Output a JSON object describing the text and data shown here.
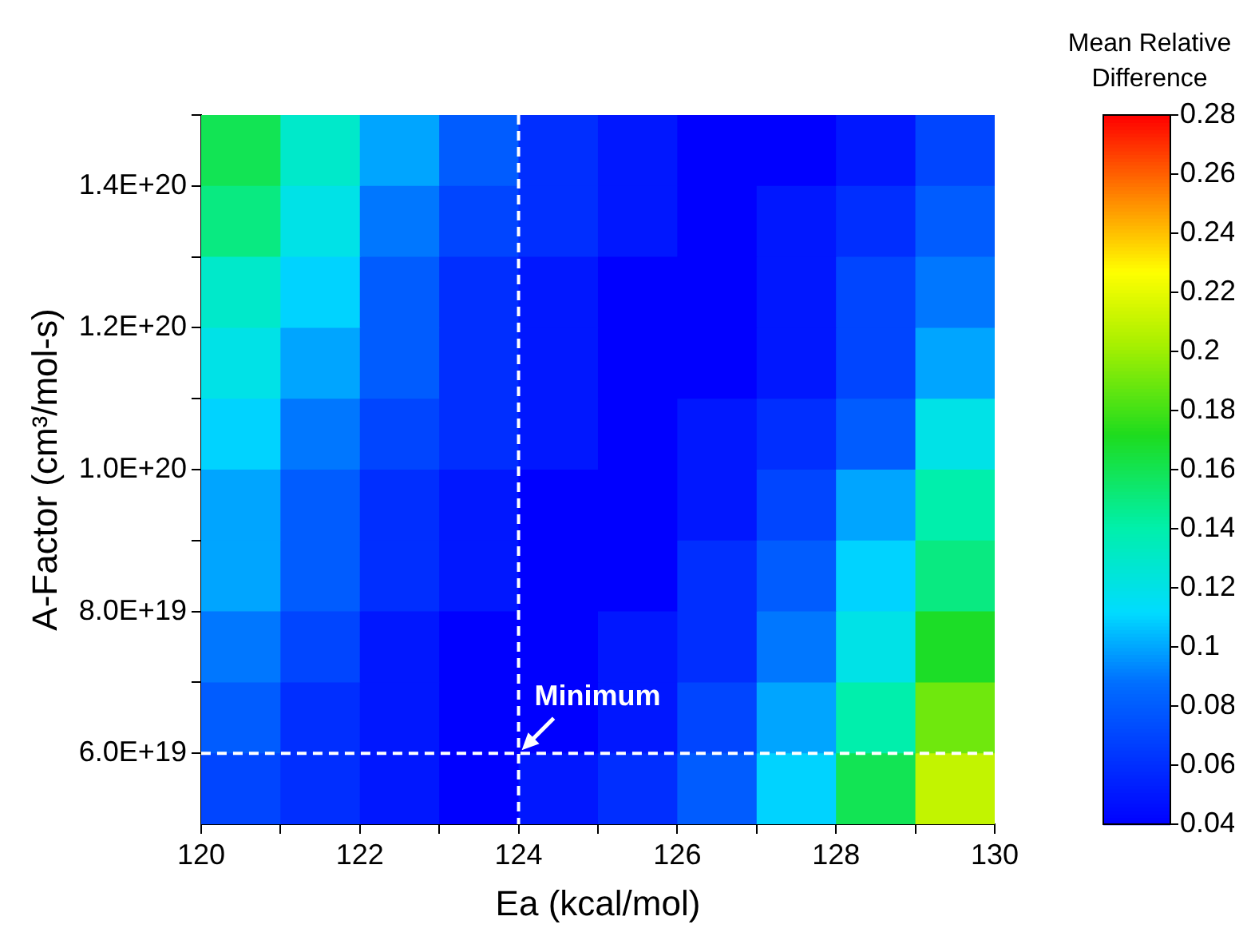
{
  "chart_data": {
    "type": "heatmap",
    "xlabel": "Ea (kcal/mol)",
    "ylabel": "A-Factor (cm³/mol-s)",
    "clabel": "Mean Relative Difference",
    "x": [
      120.5,
      121.5,
      122.5,
      123.5,
      124.5,
      125.5,
      126.5,
      127.5,
      128.5,
      129.5
    ],
    "y": [
      1.45e+20,
      1.35e+20,
      1.25e+20,
      1.15e+20,
      1.05e+20,
      9.5e+19,
      8.5e+19,
      7.5e+19,
      6.5e+19,
      5.5e+19
    ],
    "cells": [
      [
        0.16,
        0.13,
        0.1,
        0.08,
        0.06,
        0.05,
        0.04,
        0.04,
        0.05,
        0.07
      ],
      [
        0.15,
        0.12,
        0.09,
        0.07,
        0.06,
        0.05,
        0.04,
        0.05,
        0.06,
        0.08
      ],
      [
        0.13,
        0.11,
        0.08,
        0.06,
        0.05,
        0.04,
        0.04,
        0.05,
        0.07,
        0.09
      ],
      [
        0.12,
        0.1,
        0.08,
        0.06,
        0.05,
        0.04,
        0.04,
        0.05,
        0.07,
        0.1
      ],
      [
        0.11,
        0.09,
        0.07,
        0.06,
        0.05,
        0.04,
        0.05,
        0.06,
        0.08,
        0.12
      ],
      [
        0.1,
        0.08,
        0.06,
        0.05,
        0.04,
        0.04,
        0.05,
        0.07,
        0.1,
        0.14
      ],
      [
        0.1,
        0.08,
        0.06,
        0.05,
        0.04,
        0.04,
        0.06,
        0.08,
        0.11,
        0.15
      ],
      [
        0.09,
        0.07,
        0.05,
        0.04,
        0.04,
        0.05,
        0.06,
        0.09,
        0.12,
        0.17
      ],
      [
        0.08,
        0.06,
        0.05,
        0.04,
        0.04,
        0.05,
        0.07,
        0.1,
        0.14,
        0.19
      ],
      [
        0.07,
        0.06,
        0.05,
        0.04,
        0.05,
        0.06,
        0.08,
        0.11,
        0.16,
        0.21
      ]
    ],
    "xlim": [
      120,
      130
    ],
    "xticks": [
      120,
      {
        "value": 121,
        "label": null
      },
      122,
      {
        "value": 123,
        "label": null
      },
      124,
      {
        "value": 125,
        "label": null
      },
      126,
      {
        "value": 127,
        "label": null
      },
      128,
      {
        "value": 129,
        "label": null
      },
      130
    ],
    "ylim": [
      5e+19,
      1.5e+20
    ],
    "yticks": [
      {
        "value": 6e+19,
        "label": "6.0E+19"
      },
      {
        "value": 7e+19,
        "label": null
      },
      {
        "value": 8e+19,
        "label": "8.0E+19"
      },
      {
        "value": 9e+19,
        "label": null
      },
      {
        "value": 1e+20,
        "label": "1.0E+20"
      },
      {
        "value": 1.1e+20,
        "label": null
      },
      {
        "value": 1.2e+20,
        "label": "1.2E+20"
      },
      {
        "value": 1.3e+20,
        "label": null
      },
      {
        "value": 1.4e+20,
        "label": "1.4E+20"
      },
      {
        "value": 1.5e+20,
        "label": null
      }
    ],
    "clim": [
      0.04,
      0.28
    ],
    "cticks": [
      0.04,
      0.06,
      0.08,
      0.1,
      0.12,
      0.14,
      0.16,
      0.18,
      0.2,
      0.22,
      0.24,
      0.26,
      0.28
    ],
    "ref_lines": [
      {
        "axis": "x",
        "value": 124,
        "color": "#ffffff",
        "line_style": "dashed"
      },
      {
        "axis": "y",
        "value": 6e+19,
        "color": "#ffffff",
        "line_style": "dashed"
      }
    ],
    "annotations": [
      {
        "text": "Minimum",
        "x": 124,
        "y": 6e+19
      }
    ],
    "grid": false,
    "legend": false
  }
}
